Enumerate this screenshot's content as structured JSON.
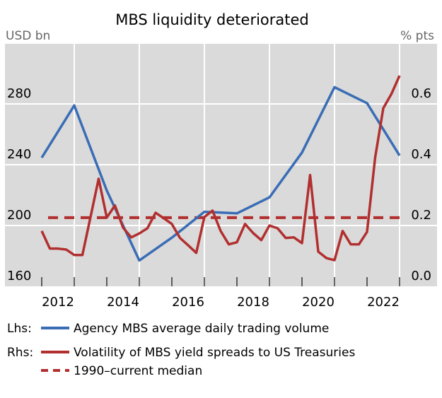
{
  "chart_data": {
    "type": "line",
    "title": "MBS liquidity deteriorated",
    "ylabel_left": "USD bn",
    "ylabel_right": "% pts",
    "left_ticks": [
      160,
      200,
      240,
      280
    ],
    "right_ticks": [
      "0.0",
      "0.2",
      "0.4",
      "0.6"
    ],
    "x_tick_labels": [
      "2012",
      "2014",
      "2016",
      "2018",
      "2020",
      "2022"
    ],
    "ylim_left": [
      160,
      313
    ],
    "ylim_right": [
      0,
      0.765
    ],
    "xlim": [
      2011.9,
      2023.2
    ],
    "grid": true,
    "series": [
      {
        "name": "Agency MBS average daily trading volume",
        "axis": "left",
        "color": "#3a6db5",
        "x": [
          2012,
          2013,
          2014,
          2015,
          2016,
          2017,
          2018,
          2019,
          2020,
          2021,
          2022,
          2023
        ],
        "values": [
          244.6,
          279,
          223,
          177,
          192,
          209,
          208,
          218.5,
          248,
          291,
          280.5,
          246
        ]
      },
      {
        "name": "Volatility of MBS yield spreads to US Treasuries",
        "axis": "right",
        "color": "#b22f2f",
        "x_start": 2012,
        "x_step": 0.25,
        "values": [
          0.182,
          0.124,
          0.124,
          0.121,
          0.103,
          0.103,
          0.228,
          0.354,
          0.226,
          0.266,
          0.193,
          0.161,
          0.174,
          0.191,
          0.242,
          0.224,
          0.205,
          0.159,
          0.135,
          0.11,
          0.228,
          0.249,
          0.182,
          0.138,
          0.145,
          0.205,
          0.175,
          0.152,
          0.2,
          0.191,
          0.159,
          0.161,
          0.142,
          0.366,
          0.114,
          0.093,
          0.086,
          0.182,
          0.138,
          0.138,
          0.179,
          0.424,
          0.586,
          0.633,
          0.693
        ]
      },
      {
        "name": "1990–current median",
        "axis": "right",
        "color": "#b22f2f",
        "dashed": true,
        "value": 0.226
      }
    ],
    "legend": {
      "placement": "bottom",
      "lhs_label": "Lhs:",
      "rhs_label": "Rhs:",
      "items": [
        "Agency MBS average daily trading volume",
        "Volatility of MBS yield spreads to US Treasuries",
        "1990–current median"
      ]
    }
  }
}
